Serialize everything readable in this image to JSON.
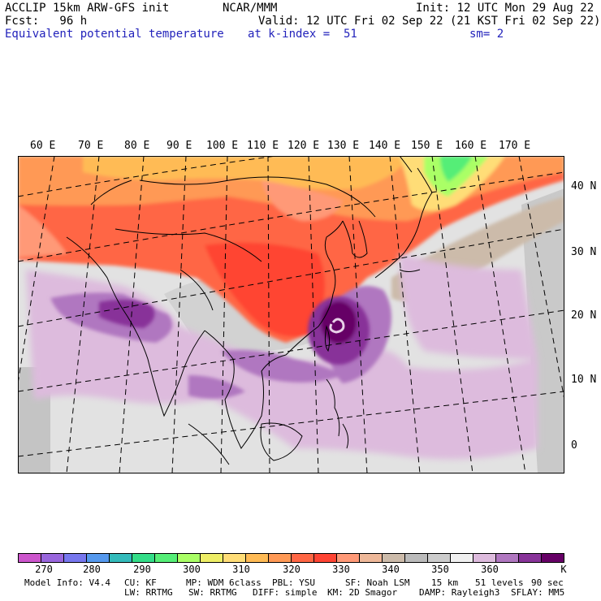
{
  "header": {
    "model": "ACCLIP 15km ARW-GFS init",
    "center": "NCAR/MMM",
    "init": "Init: 12 UTC Mon 29 Aug 22",
    "fcst": "Fcst:   96 h",
    "valid": "Valid: 12 UTC Fri 02 Sep 22 (21 KST Fri 02 Sep 22)",
    "field": "Equivalent potential temperature",
    "level": "at k-index =  51",
    "smooth": "sm= 2"
  },
  "map": {
    "lon_labels": [
      "60 E",
      "70 E",
      "80 E",
      "90 E",
      "100 E",
      "110 E",
      "120 E",
      "130 E",
      "140 E",
      "150 E",
      "160 E",
      "170 E"
    ],
    "lat_labels": [
      "40 N",
      "30 N",
      "20 N",
      "10 N",
      "0"
    ]
  },
  "colorbar": {
    "colors": [
      "#cc55cc",
      "#9966dd",
      "#7777ee",
      "#5599ee",
      "#33bbbb",
      "#33dd88",
      "#55ee77",
      "#aaff66",
      "#eeee66",
      "#ffdd77",
      "#ffbb55",
      "#ff9955",
      "#ff6644",
      "#ff4433",
      "#ff9977",
      "#eeb899",
      "#ccbbaa",
      "#bbbbbb",
      "#cccccc",
      "#f0f0f0",
      "#ddbbdd",
      "#b077c0",
      "#883399",
      "#660066"
    ],
    "labels": [
      "270",
      "280",
      "290",
      "300",
      "310",
      "320",
      "330",
      "340",
      "350",
      "360"
    ],
    "unit": "K"
  },
  "footer": {
    "line1": {
      "model_info": "Model Info: V4.4",
      "cu": "CU: KF",
      "mp": "MP: WDM 6class",
      "pbl": "PBL: YSU",
      "sf": "SF: Noah LSM",
      "res": "15 km",
      "levels": "51 levels",
      "dt": "90 sec"
    },
    "line2": {
      "lw": "LW: RRTMG",
      "sw": "SW: RRTMG",
      "diff": "DIFF: simple",
      "km": "KM: 2D Smagor",
      "damp": "DAMP: Rayleigh3",
      "sflay": "SFLAY: MM5"
    }
  }
}
